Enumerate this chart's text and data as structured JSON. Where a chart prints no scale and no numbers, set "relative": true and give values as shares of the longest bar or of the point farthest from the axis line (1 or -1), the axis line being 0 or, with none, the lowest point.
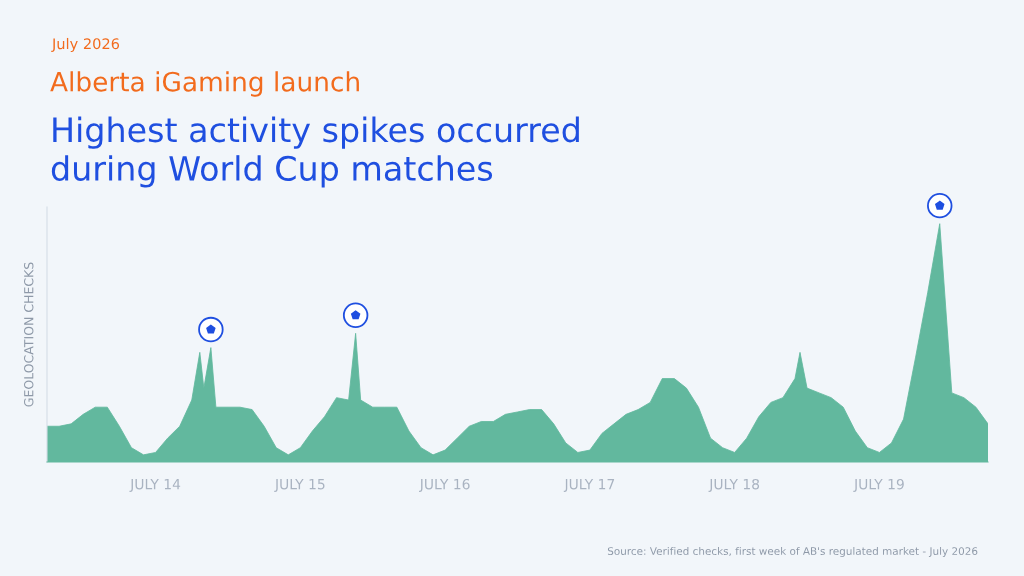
{
  "chart_data": {
    "type": "area",
    "title": "Highest activity spikes occurred during World Cup matches",
    "subtitle": "Alberta iGaming launch",
    "ylabel": "GEOLOCATION CHECKS",
    "annotations": [
      "July 2026",
      "Source: Verified checks, first week of AB's regulated market - July 2026"
    ],
    "relative": true,
    "grid": false,
    "legend": false,
    "tick_labels": "x",
    "xlim": [
      "2026-07-13T18:00",
      "2026-07-20T06:00"
    ],
    "xticks": [
      {
        "value": "2026-07-14T12:00",
        "label": "JULY 14"
      },
      {
        "value": "2026-07-15T12:00",
        "label": "JULY 15"
      },
      {
        "value": "2026-07-16T12:00",
        "label": "JULY 16"
      },
      {
        "value": "2026-07-17T12:00",
        "label": "JULY 17"
      },
      {
        "value": "2026-07-18T12:00",
        "label": "JULY 18"
      },
      {
        "value": "2026-07-19T12:00",
        "label": "JULY 19"
      }
    ],
    "x": [
      "2026-07-13T18:00",
      "2026-07-13T20:00",
      "2026-07-13T22:00",
      "2026-07-14T00:00",
      "2026-07-14T02:00",
      "2026-07-14T04:00",
      "2026-07-14T06:00",
      "2026-07-14T08:00",
      "2026-07-14T10:00",
      "2026-07-14T12:00",
      "2026-07-14T14:00",
      "2026-07-14T16:00",
      "2026-07-14T18:00",
      "2026-07-14T19:20",
      "2026-07-14T20:00",
      "2026-07-14T21:10",
      "2026-07-14T22:00",
      "2026-07-15T00:00",
      "2026-07-15T02:00",
      "2026-07-15T04:00",
      "2026-07-15T06:00",
      "2026-07-15T08:00",
      "2026-07-15T10:00",
      "2026-07-15T12:00",
      "2026-07-15T14:00",
      "2026-07-15T16:00",
      "2026-07-15T18:00",
      "2026-07-15T20:00",
      "2026-07-15T21:10",
      "2026-07-15T22:00",
      "2026-07-16T00:00",
      "2026-07-16T02:00",
      "2026-07-16T04:00",
      "2026-07-16T06:00",
      "2026-07-16T08:00",
      "2026-07-16T10:00",
      "2026-07-16T12:00",
      "2026-07-16T14:00",
      "2026-07-16T16:00",
      "2026-07-16T18:00",
      "2026-07-16T20:00",
      "2026-07-16T22:00",
      "2026-07-17T00:00",
      "2026-07-17T02:00",
      "2026-07-17T04:00",
      "2026-07-17T06:00",
      "2026-07-17T08:00",
      "2026-07-17T10:00",
      "2026-07-17T12:00",
      "2026-07-17T14:00",
      "2026-07-17T16:00",
      "2026-07-17T18:00",
      "2026-07-17T20:00",
      "2026-07-17T22:00",
      "2026-07-18T00:00",
      "2026-07-18T02:00",
      "2026-07-18T04:00",
      "2026-07-18T06:00",
      "2026-07-18T08:00",
      "2026-07-18T10:00",
      "2026-07-18T12:00",
      "2026-07-18T14:00",
      "2026-07-18T16:00",
      "2026-07-18T18:00",
      "2026-07-18T20:00",
      "2026-07-18T22:00",
      "2026-07-18T22:50",
      "2026-07-19T00:00",
      "2026-07-19T02:00",
      "2026-07-19T04:00",
      "2026-07-19T06:00",
      "2026-07-19T08:00",
      "2026-07-19T10:00",
      "2026-07-19T12:00",
      "2026-07-19T14:00",
      "2026-07-19T16:00",
      "2026-07-19T18:00",
      "2026-07-19T20:00",
      "2026-07-19T22:00",
      "2026-07-20T00:00",
      "2026-07-20T02:00",
      "2026-07-20T04:00",
      "2026-07-20T06:00"
    ],
    "series": [
      {
        "color": "#62b89e",
        "values": [
          0.15,
          0.15,
          0.16,
          0.2,
          0.23,
          0.23,
          0.15,
          0.06,
          0.03,
          0.04,
          0.1,
          0.15,
          0.26,
          0.46,
          0.31,
          0.48,
          0.23,
          0.23,
          0.23,
          0.22,
          0.15,
          0.06,
          0.03,
          0.06,
          0.13,
          0.19,
          0.27,
          0.26,
          0.54,
          0.26,
          0.23,
          0.23,
          0.23,
          0.13,
          0.06,
          0.03,
          0.05,
          0.1,
          0.15,
          0.17,
          0.17,
          0.2,
          0.21,
          0.22,
          0.22,
          0.16,
          0.08,
          0.04,
          0.05,
          0.12,
          0.16,
          0.2,
          0.22,
          0.25,
          0.35,
          0.35,
          0.31,
          0.23,
          0.1,
          0.06,
          0.04,
          0.1,
          0.19,
          0.25,
          0.27,
          0.35,
          0.46,
          0.31,
          0.29,
          0.27,
          0.23,
          0.13,
          0.06,
          0.04,
          0.08,
          0.18,
          0.44,
          0.71,
          1,
          0.29,
          0.27,
          0.23,
          0.16
        ]
      }
    ]
  }
}
